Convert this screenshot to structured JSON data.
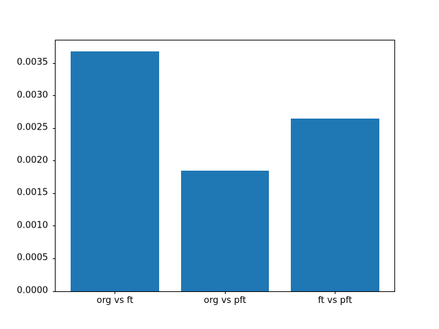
{
  "chart_data": {
    "type": "bar",
    "categories": [
      "org vs ft",
      "org vs pft",
      "ft vs pft"
    ],
    "values": [
      0.00368,
      0.00185,
      0.00265
    ],
    "bar_positions": [
      0,
      1,
      2
    ],
    "bar_width": 0.8,
    "bar_color": "#1f77b4",
    "yticks": [
      "0.0000",
      "0.0005",
      "0.0010",
      "0.0015",
      "0.0020",
      "0.0025",
      "0.0030",
      "0.0035"
    ],
    "ylim": [
      0,
      0.00385
    ],
    "xlim": [
      -0.54,
      2.54
    ],
    "grid": false,
    "legend": false,
    "frame_color": "#000000",
    "background_color": "#ffffff"
  }
}
